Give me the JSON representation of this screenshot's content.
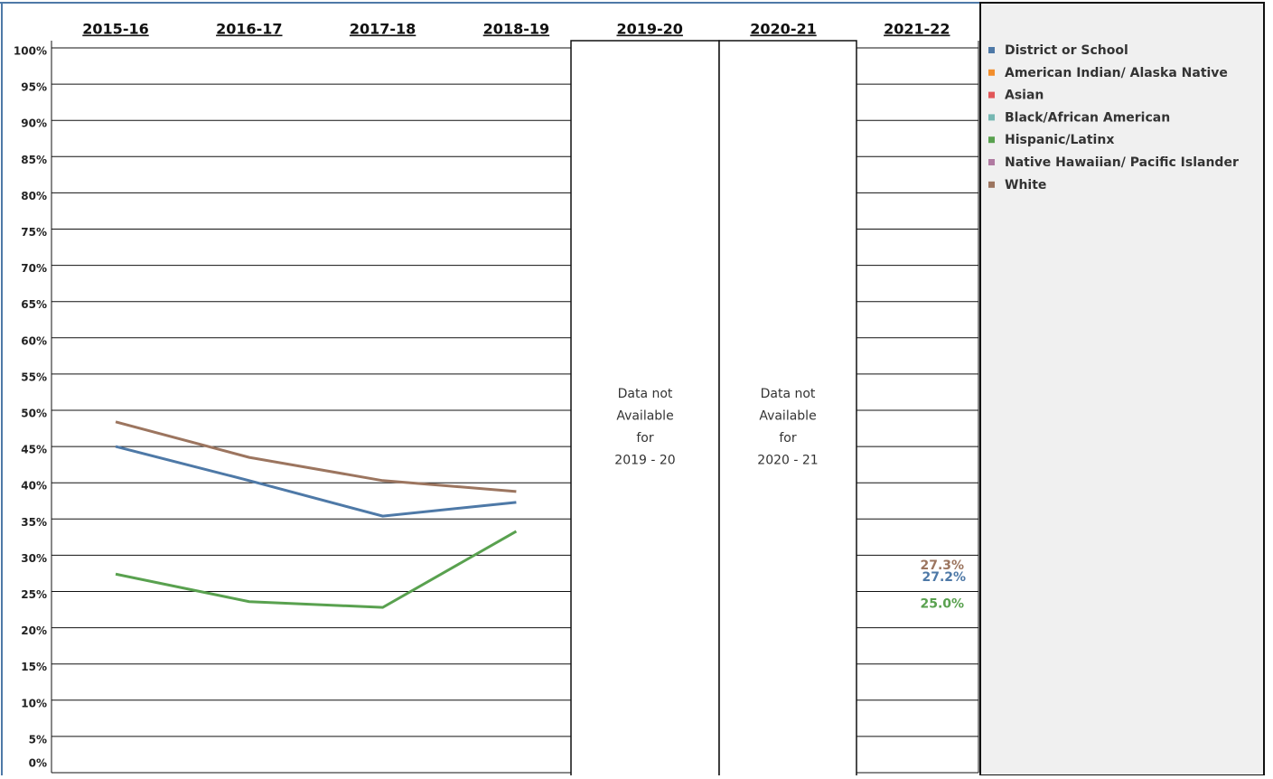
{
  "chart_data": {
    "type": "line",
    "categories": [
      "2015-16",
      "2016-17",
      "2017-18",
      "2018-19",
      "2019-20",
      "2020-21",
      "2021-22"
    ],
    "series": [
      {
        "name": "District or School",
        "color": "#4e79a7",
        "values": [
          45.0,
          40.3,
          35.4,
          37.3,
          null,
          null,
          27.2
        ],
        "value_labels": [
          null,
          null,
          null,
          null,
          null,
          null,
          "27.2%"
        ]
      },
      {
        "name": "American Indian/ Alaska Native",
        "color": "#f28e2b",
        "values": [
          null,
          null,
          null,
          null,
          null,
          null,
          null
        ]
      },
      {
        "name": "Asian",
        "color": "#e15759",
        "values": [
          null,
          null,
          null,
          null,
          null,
          null,
          null
        ]
      },
      {
        "name": "Black/African American",
        "color": "#76b7b2",
        "values": [
          null,
          null,
          null,
          null,
          null,
          null,
          null
        ]
      },
      {
        "name": "Hispanic/Latinx",
        "color": "#59a14f",
        "values": [
          27.4,
          23.6,
          22.8,
          33.3,
          null,
          null,
          25.0
        ],
        "value_labels": [
          null,
          null,
          null,
          null,
          null,
          null,
          "25.0%"
        ]
      },
      {
        "name": "Native Hawaiian/ Pacific Islander",
        "color": "#b07aa1",
        "values": [
          null,
          null,
          null,
          null,
          null,
          null,
          null
        ]
      },
      {
        "name": "White",
        "color": "#9c755f",
        "values": [
          48.4,
          43.5,
          40.3,
          38.8,
          null,
          null,
          27.3
        ],
        "value_labels": [
          null,
          null,
          null,
          null,
          null,
          null,
          "27.3%"
        ]
      }
    ],
    "ylim": [
      0,
      100
    ],
    "yticks": [
      {
        "value": 0,
        "label": "0%"
      },
      {
        "value": 5,
        "label": "5%"
      },
      {
        "value": 10,
        "label": "10%"
      },
      {
        "value": 15,
        "label": "15%"
      },
      {
        "value": 20,
        "label": "20%"
      },
      {
        "value": 25,
        "label": "25%"
      },
      {
        "value": 30,
        "label": "30%"
      },
      {
        "value": 35,
        "label": "35%"
      },
      {
        "value": 40,
        "label": "40%"
      },
      {
        "value": 45,
        "label": "45%"
      },
      {
        "value": 50,
        "label": "50%"
      },
      {
        "value": 55,
        "label": "55%"
      },
      {
        "value": 60,
        "label": "60%"
      },
      {
        "value": 65,
        "label": "65%"
      },
      {
        "value": 70,
        "label": "70%"
      },
      {
        "value": 75,
        "label": "75%"
      },
      {
        "value": 80,
        "label": "80%"
      },
      {
        "value": 85,
        "label": "85%"
      },
      {
        "value": 90,
        "label": "90%"
      },
      {
        "value": 95,
        "label": "95%"
      },
      {
        "value": 100,
        "label": "100%"
      }
    ],
    "grid": true,
    "annotations": [
      {
        "lines": [
          "Data not",
          "Available",
          "for",
          "2019 - 20"
        ]
      },
      {
        "lines": [
          "Data not",
          "Available",
          "for",
          "2020 - 21"
        ]
      }
    ]
  }
}
